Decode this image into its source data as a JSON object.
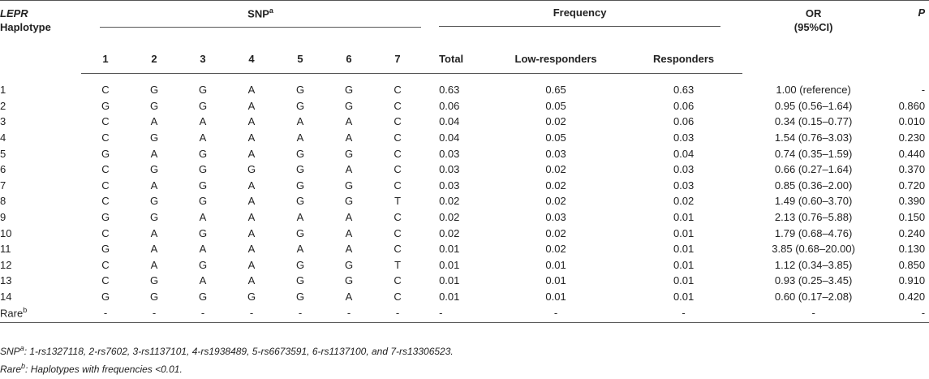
{
  "header": {
    "lepr": "LEPR",
    "haplotype": "Haplotype",
    "snp": "SNP",
    "snp_sup": "a",
    "snp_numbers": [
      "1",
      "2",
      "3",
      "4",
      "5",
      "6",
      "7"
    ],
    "frequency": "Frequency",
    "total": "Total",
    "low": "Low-responders",
    "responders": "Responders",
    "or": "OR",
    "or_ci": "(95%CI)",
    "p": "P"
  },
  "rows": [
    [
      "1",
      "C",
      "G",
      "G",
      "A",
      "G",
      "G",
      "C",
      "0.63",
      "0.65",
      "0.63",
      "1.00 (reference)",
      "-"
    ],
    [
      "2",
      "G",
      "G",
      "G",
      "A",
      "G",
      "G",
      "C",
      "0.06",
      "0.05",
      "0.06",
      "0.95 (0.56–1.64)",
      "0.860"
    ],
    [
      "3",
      "C",
      "A",
      "A",
      "A",
      "A",
      "A",
      "C",
      "0.04",
      "0.02",
      "0.06",
      "0.34 (0.15–0.77)",
      "0.010"
    ],
    [
      "4",
      "C",
      "G",
      "A",
      "A",
      "A",
      "A",
      "C",
      "0.04",
      "0.05",
      "0.03",
      "1.54 (0.76–3.03)",
      "0.230"
    ],
    [
      "5",
      "G",
      "A",
      "G",
      "A",
      "G",
      "G",
      "C",
      "0.03",
      "0.03",
      "0.04",
      "0.74 (0.35–1.59)",
      "0.440"
    ],
    [
      "6",
      "C",
      "G",
      "G",
      "G",
      "G",
      "A",
      "C",
      "0.03",
      "0.02",
      "0.03",
      "0.66 (0.27–1.64)",
      "0.370"
    ],
    [
      "7",
      "C",
      "A",
      "G",
      "A",
      "G",
      "G",
      "C",
      "0.03",
      "0.02",
      "0.03",
      "0.85 (0.36–2.00)",
      "0.720"
    ],
    [
      "8",
      "C",
      "G",
      "G",
      "A",
      "G",
      "G",
      "T",
      "0.02",
      "0.02",
      "0.02",
      "1.49 (0.60–3.70)",
      "0.390"
    ],
    [
      "9",
      "G",
      "G",
      "A",
      "A",
      "A",
      "A",
      "C",
      "0.02",
      "0.03",
      "0.01",
      "2.13 (0.76–5.88)",
      "0.150"
    ],
    [
      "10",
      "C",
      "A",
      "G",
      "A",
      "G",
      "A",
      "C",
      "0.02",
      "0.02",
      "0.01",
      "1.79 (0.68–4.76)",
      "0.240"
    ],
    [
      "11",
      "G",
      "A",
      "A",
      "A",
      "A",
      "A",
      "C",
      "0.01",
      "0.02",
      "0.01",
      "3.85 (0.68–20.00)",
      "0.130"
    ],
    [
      "12",
      "C",
      "A",
      "G",
      "A",
      "G",
      "G",
      "T",
      "0.01",
      "0.01",
      "0.01",
      "1.12 (0.34–3.85)",
      "0.850"
    ],
    [
      "13",
      "C",
      "G",
      "A",
      "A",
      "G",
      "G",
      "C",
      "0.01",
      "0.01",
      "0.01",
      "0.93 (0.25–3.45)",
      "0.910"
    ],
    [
      "14",
      "G",
      "G",
      "G",
      "G",
      "G",
      "A",
      "C",
      "0.01",
      "0.01",
      "0.01",
      "0.60 (0.17–2.08)",
      "0.420"
    ]
  ],
  "rare_row": {
    "label": "Rare",
    "sup": "b",
    "cells": [
      "-",
      "-",
      "-",
      "-",
      "-",
      "-",
      "-",
      "-",
      "-",
      "-",
      "-",
      "-"
    ]
  },
  "footnotes": [
    {
      "label": "SNP",
      "sup": "a",
      "text": ": 1-rs1327118, 2-rs7602, 3-rs1137101, 4-rs1938489, 5-rs6673591, 6-rs1137100, and 7-rs13306523."
    },
    {
      "label": "Rare",
      "sup": "b",
      "text": ": Haplotypes with frequencies <0.01."
    }
  ]
}
